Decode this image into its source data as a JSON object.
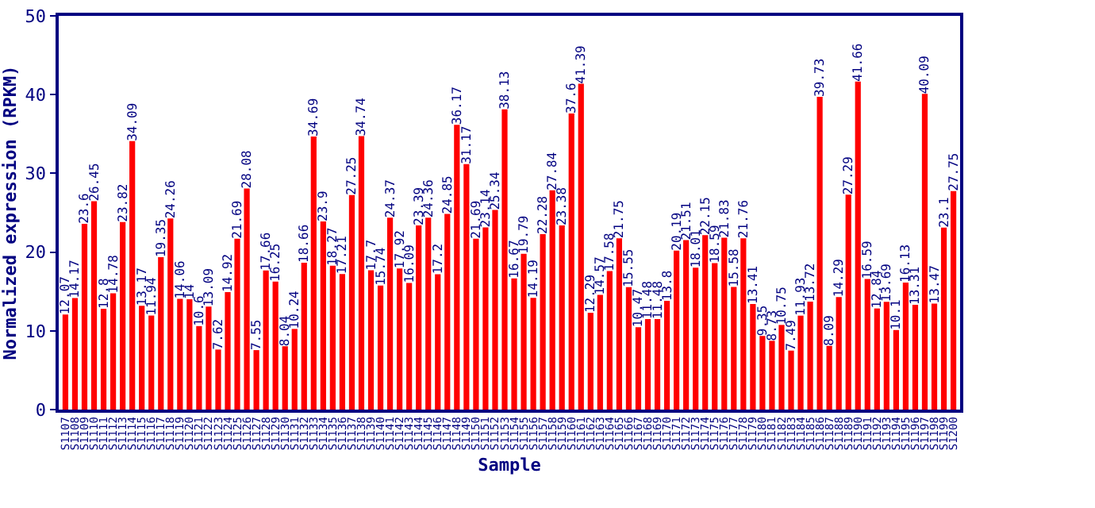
{
  "chart_data": {
    "type": "bar",
    "xlabel": "Sample",
    "ylabel": "Normalized expression (RPKM)",
    "categories": [
      "S1107",
      "S1108",
      "S1109",
      "S1110",
      "S1111",
      "S1112",
      "S1113",
      "S1114",
      "S1115",
      "S1116",
      "S1117",
      "S1118",
      "S1119",
      "S1120",
      "S1121",
      "S1122",
      "S1123",
      "S1124",
      "S1125",
      "S1126",
      "S1127",
      "S1128",
      "S1129",
      "S1130",
      "S1131",
      "S1132",
      "S1133",
      "S1134",
      "S1135",
      "S1136",
      "S1137",
      "S1138",
      "S1139",
      "S1140",
      "S1141",
      "S1142",
      "S1143",
      "S1144",
      "S1145",
      "S1146",
      "S1147",
      "S1148",
      "S1149",
      "S1150",
      "S1151",
      "S1152",
      "S1153",
      "S1154",
      "S1155",
      "S1156",
      "S1157",
      "S1158",
      "S1159",
      "S1160",
      "S1161",
      "S1162",
      "S1163",
      "S1164",
      "S1165",
      "S1166",
      "S1167",
      "S1168",
      "S1169",
      "S1170",
      "S1171",
      "S1172",
      "S1173",
      "S1174",
      "S1175",
      "S1176",
      "S1177",
      "S1178",
      "S1179",
      "S1180",
      "S1181",
      "S1182",
      "S1183",
      "S1184",
      "S1185",
      "S1186",
      "S1187",
      "S1188",
      "S1189",
      "S1190",
      "S1191",
      "S1192",
      "S1193",
      "S1194",
      "S1195",
      "S1196",
      "S1197",
      "S1198",
      "S1199",
      "S1200"
    ],
    "values": [
      12.07,
      14.17,
      23.6,
      26.45,
      12.8,
      14.78,
      23.82,
      34.09,
      13.17,
      11.94,
      19.35,
      24.26,
      14.06,
      14,
      10.6,
      13.09,
      7.62,
      14.92,
      21.69,
      28.08,
      7.55,
      17.66,
      16.25,
      8.04,
      10.24,
      18.66,
      34.69,
      23.9,
      18.27,
      17.21,
      27.25,
      34.74,
      17.7,
      15.74,
      24.37,
      17.92,
      16.09,
      23.39,
      24.36,
      17.2,
      24.85,
      36.17,
      31.17,
      21.69,
      23.14,
      25.34,
      38.13,
      16.67,
      19.79,
      14.19,
      22.28,
      27.84,
      23.38,
      37.6,
      41.39,
      12.29,
      14.57,
      17.58,
      21.75,
      15.55,
      10.47,
      11.48,
      11.48,
      13.8,
      20.19,
      21.51,
      18.01,
      22.15,
      18.59,
      21.83,
      15.58,
      21.76,
      13.41,
      9.35,
      8.73,
      10.75,
      7.49,
      11.93,
      13.72,
      39.73,
      8.09,
      14.29,
      27.29,
      41.66,
      16.59,
      12.84,
      13.69,
      10.1,
      16.13,
      13.31,
      40.09,
      13.47,
      23.1,
      27.75
    ],
    "color": "#ff0000",
    "ylim": [
      0,
      50
    ],
    "yticks": [
      0,
      10,
      20,
      30,
      40,
      50
    ],
    "data_labels": true,
    "grid": false,
    "legend": false
  }
}
